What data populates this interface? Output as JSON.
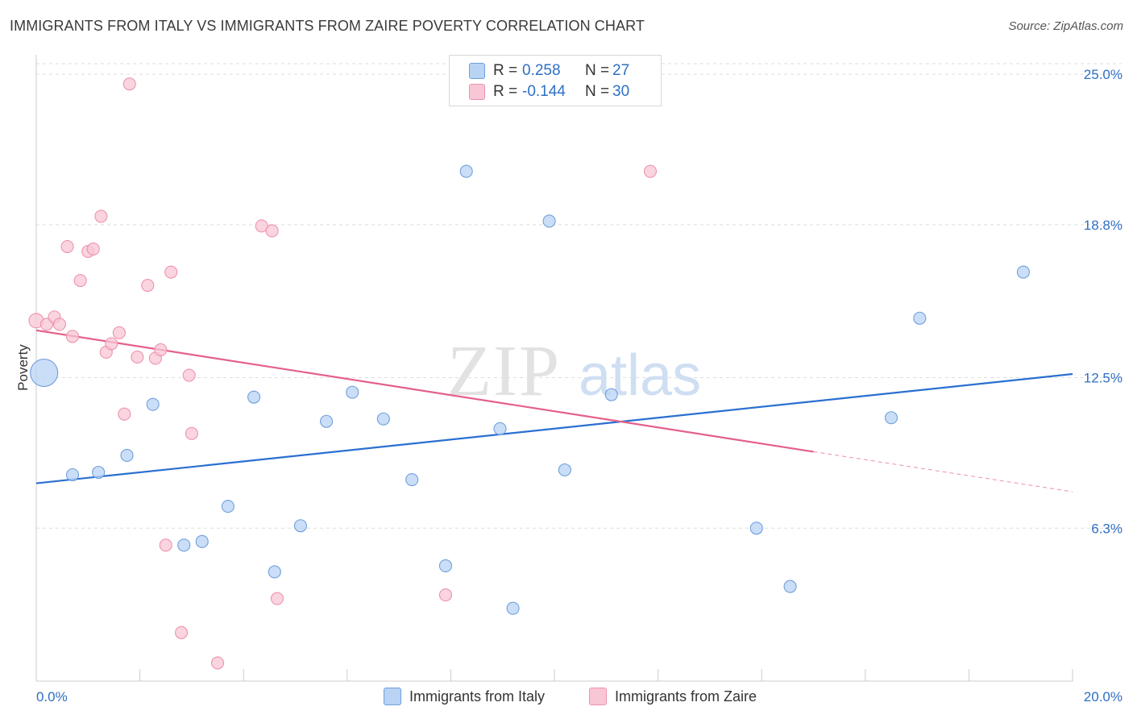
{
  "header": {
    "title": "IMMIGRANTS FROM ITALY VS IMMIGRANTS FROM ZAIRE POVERTY CORRELATION CHART",
    "source": "Source: ZipAtlas.com"
  },
  "legend": {
    "rows": [
      {
        "r_label": "R =",
        "r_value": "0.258",
        "n_label": "N =",
        "n_value": "27"
      },
      {
        "r_label": "R =",
        "r_value": "-0.144",
        "n_label": "N =",
        "n_value": "30"
      }
    ]
  },
  "watermark": {
    "zip": "ZIP",
    "atlas": "atlas"
  },
  "colors": {
    "italy_fill": "#b9d3f4",
    "italy_stroke": "#6f9fdc",
    "italy_line": "#2a6fd1",
    "zaire_fill": "#f8c6d4",
    "zaire_stroke": "#ec93ad",
    "zaire_line": "#e4608a",
    "axis_text": "#2f6fc4",
    "grid": "#dedede"
  },
  "chart_data": {
    "type": "scatter",
    "title": "IMMIGRANTS FROM ITALY VS IMMIGRANTS FROM ZAIRE POVERTY CORRELATION CHART",
    "xlabel": "",
    "ylabel": "Poverty",
    "xlim": [
      0,
      20
    ],
    "ylim": [
      0,
      25.8
    ],
    "x_tick_labels": [
      "0.0%",
      "20.0%"
    ],
    "y_ticks": [
      6.3,
      12.5,
      18.8,
      25.0
    ],
    "y_tick_labels": [
      "6.3%",
      "12.5%",
      "18.8%",
      "25.0%"
    ],
    "grid": true,
    "legend_position": "top-center",
    "series": [
      {
        "name": "Immigrants from Italy",
        "color": "#6f9fdc",
        "points": [
          [
            0.15,
            12.7
          ],
          [
            0.7,
            8.5
          ],
          [
            1.2,
            8.6
          ],
          [
            1.75,
            9.3
          ],
          [
            2.25,
            11.4
          ],
          [
            2.85,
            5.6
          ],
          [
            3.2,
            5.75
          ],
          [
            3.7,
            7.2
          ],
          [
            4.2,
            11.7
          ],
          [
            4.6,
            4.5
          ],
          [
            5.1,
            6.4
          ],
          [
            5.6,
            10.7
          ],
          [
            6.1,
            11.9
          ],
          [
            6.7,
            10.8
          ],
          [
            7.25,
            8.3
          ],
          [
            7.9,
            4.75
          ],
          [
            8.3,
            21.0
          ],
          [
            8.95,
            10.4
          ],
          [
            9.2,
            3.0
          ],
          [
            9.9,
            18.95
          ],
          [
            10.2,
            8.7
          ],
          [
            11.1,
            11.8
          ],
          [
            13.9,
            6.3
          ],
          [
            14.55,
            3.9
          ],
          [
            16.5,
            10.85
          ],
          [
            17.05,
            14.95
          ],
          [
            19.05,
            16.85
          ]
        ],
        "sizes": [
          34,
          15,
          15,
          15,
          15,
          15,
          15,
          15,
          15,
          15,
          15,
          15,
          15,
          15,
          15,
          15,
          15,
          15,
          15,
          15,
          15,
          15,
          15,
          15,
          15,
          15,
          15
        ],
        "trend": {
          "x": [
            0,
            20
          ],
          "y": [
            8.15,
            12.65
          ]
        }
      },
      {
        "name": "Immigrants from Zaire",
        "color": "#ec93ad",
        "points": [
          [
            0.0,
            14.85
          ],
          [
            0.2,
            14.7
          ],
          [
            0.35,
            15.0
          ],
          [
            0.45,
            14.7
          ],
          [
            0.6,
            17.9
          ],
          [
            0.7,
            14.2
          ],
          [
            0.85,
            16.5
          ],
          [
            1.0,
            17.7
          ],
          [
            1.1,
            17.8
          ],
          [
            1.25,
            19.15
          ],
          [
            1.35,
            13.55
          ],
          [
            1.45,
            13.9
          ],
          [
            1.6,
            14.35
          ],
          [
            1.7,
            11.0
          ],
          [
            1.8,
            24.6
          ],
          [
            1.95,
            13.35
          ],
          [
            2.15,
            16.3
          ],
          [
            2.3,
            13.3
          ],
          [
            2.4,
            13.65
          ],
          [
            2.5,
            5.6
          ],
          [
            2.6,
            16.85
          ],
          [
            2.8,
            2.0
          ],
          [
            2.95,
            12.6
          ],
          [
            3.0,
            10.2
          ],
          [
            3.5,
            0.75
          ],
          [
            4.35,
            18.75
          ],
          [
            4.55,
            18.55
          ],
          [
            4.65,
            3.4
          ],
          [
            7.9,
            3.55
          ],
          [
            11.85,
            21.0
          ]
        ],
        "sizes": [
          18,
          15,
          15,
          15,
          15,
          15,
          15,
          15,
          15,
          15,
          15,
          15,
          15,
          15,
          15,
          15,
          15,
          15,
          15,
          15,
          15,
          15,
          15,
          15,
          15,
          15,
          15,
          15,
          15,
          15
        ],
        "trend": {
          "x": [
            0,
            15.0
          ],
          "y": [
            14.45,
            9.45
          ]
        },
        "trend_dashed": {
          "x": [
            15.0,
            20
          ],
          "y": [
            9.45,
            7.8
          ]
        }
      }
    ]
  }
}
